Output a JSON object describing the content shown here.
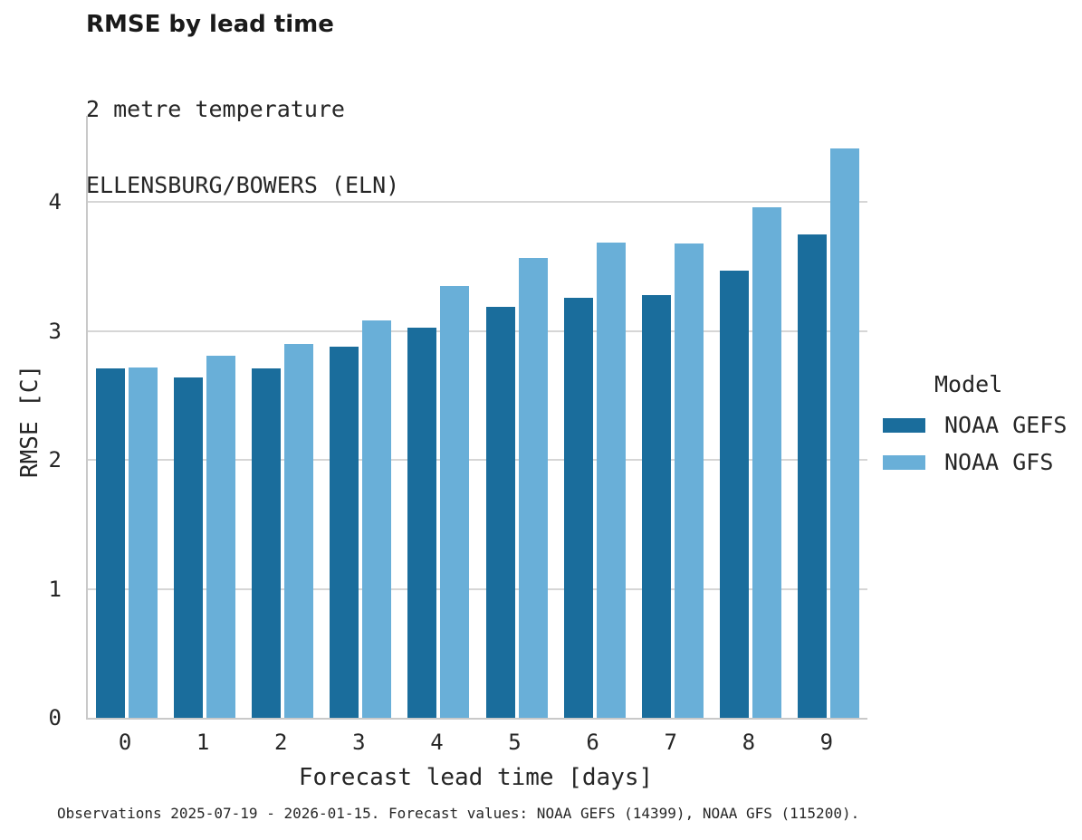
{
  "figure": {
    "title": "RMSE by lead time",
    "subtitle_lines": [
      "2 metre temperature",
      "ELLENSBURG/BOWERS (ELN)"
    ],
    "caption": "Observations 2025-07-19 - 2026-01-15. Forecast values: NOAA GEFS (14399), NOAA GFS (115200)."
  },
  "legend": {
    "title": "Model",
    "entries": [
      {
        "label": "NOAA GEFS",
        "color": "#1a6d9c"
      },
      {
        "label": "NOAA GFS",
        "color": "#69afd8"
      }
    ]
  },
  "colors": {
    "gefs_bar": "#1a6d9c",
    "gfs_bar": "#69afd8",
    "gridline": "#d6d6d6",
    "axis_line": "#c9c9c9",
    "text": "#262626"
  },
  "chart_data": {
    "type": "bar",
    "title": "RMSE by lead time",
    "subtitle": [
      "2 metre temperature",
      "ELLENSBURG/BOWERS (ELN)"
    ],
    "xlabel": "Forecast lead time [days]",
    "ylabel": "RMSE [C]",
    "categories": [
      "0",
      "1",
      "2",
      "3",
      "4",
      "5",
      "6",
      "7",
      "8",
      "9"
    ],
    "series": [
      {
        "name": "NOAA GEFS",
        "color": "#1a6d9c",
        "values": [
          2.71,
          2.64,
          2.71,
          2.88,
          3.03,
          3.19,
          3.26,
          3.28,
          3.47,
          3.75
        ]
      },
      {
        "name": "NOAA GFS",
        "color": "#69afd8",
        "values": [
          2.72,
          2.81,
          2.9,
          3.08,
          3.35,
          3.57,
          3.69,
          3.68,
          3.96,
          4.42
        ]
      }
    ],
    "ylim": [
      0,
      4.67
    ],
    "yticks": [
      0,
      1,
      2,
      3,
      4
    ],
    "grid": "horizontal",
    "legend_position": "right",
    "legend_title": "Model",
    "caption": "Observations 2025-07-19 - 2026-01-15. Forecast values: NOAA GEFS (14399), NOAA GFS (115200)."
  }
}
